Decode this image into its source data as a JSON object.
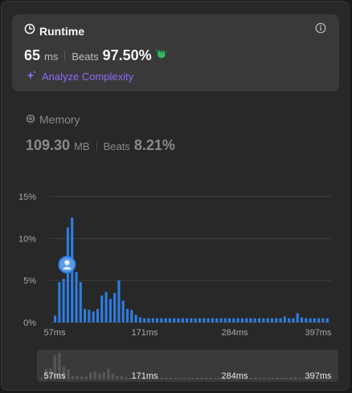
{
  "runtime": {
    "title": "Runtime",
    "value": "65",
    "unit": "ms",
    "beats_label": "Beats",
    "beats_value": "97.50%",
    "analyze_label": "Analyze Complexity",
    "title_icon": "clock-icon",
    "info_icon": "info-icon",
    "beats_icon": "clapping-hands-icon",
    "analyze_icon": "sparkle-icon",
    "beats_color": "#2cbb5d",
    "analyze_color": "#8d6cf6"
  },
  "memory": {
    "title": "Memory",
    "value": "109.30",
    "unit": "MB",
    "beats_label": "Beats",
    "beats_value": "8.21%",
    "title_icon": "chip-icon"
  },
  "chart_data": {
    "type": "bar",
    "ylim": [
      0,
      15
    ],
    "y_ticks": [
      "15%",
      "10%",
      "5%",
      "0%"
    ],
    "x_ticks": [
      "57ms",
      "171ms",
      "284ms",
      "397ms"
    ],
    "bar_color": "#2f7de1",
    "marker_icon": "user-avatar-icon",
    "marker_bar_index": 3,
    "values": [
      0.8,
      4.8,
      5.2,
      11.3,
      12.5,
      6.0,
      4.8,
      1.6,
      1.5,
      1.3,
      1.6,
      3.2,
      3.6,
      2.8,
      3.5,
      5.0,
      2.6,
      1.6,
      1.5,
      0.9,
      0.6,
      0.5,
      0.5,
      0.5,
      0.5,
      0.5,
      0.5,
      0.5,
      0.5,
      0.5,
      0.5,
      0.5,
      0.5,
      0.5,
      0.5,
      0.5,
      0.5,
      0.5,
      0.5,
      0.5,
      0.5,
      0.5,
      0.5,
      0.5,
      0.5,
      0.5,
      0.5,
      0.5,
      0.5,
      0.5,
      0.5,
      0.5,
      0.5,
      0.5,
      0.7,
      0.5,
      0.5,
      1.1,
      0.6,
      0.5,
      0.5,
      0.5,
      0.5,
      0.5,
      0.5
    ]
  },
  "brush": {
    "x_ticks": [
      "57ms",
      "171ms",
      "284ms",
      "397ms"
    ]
  }
}
